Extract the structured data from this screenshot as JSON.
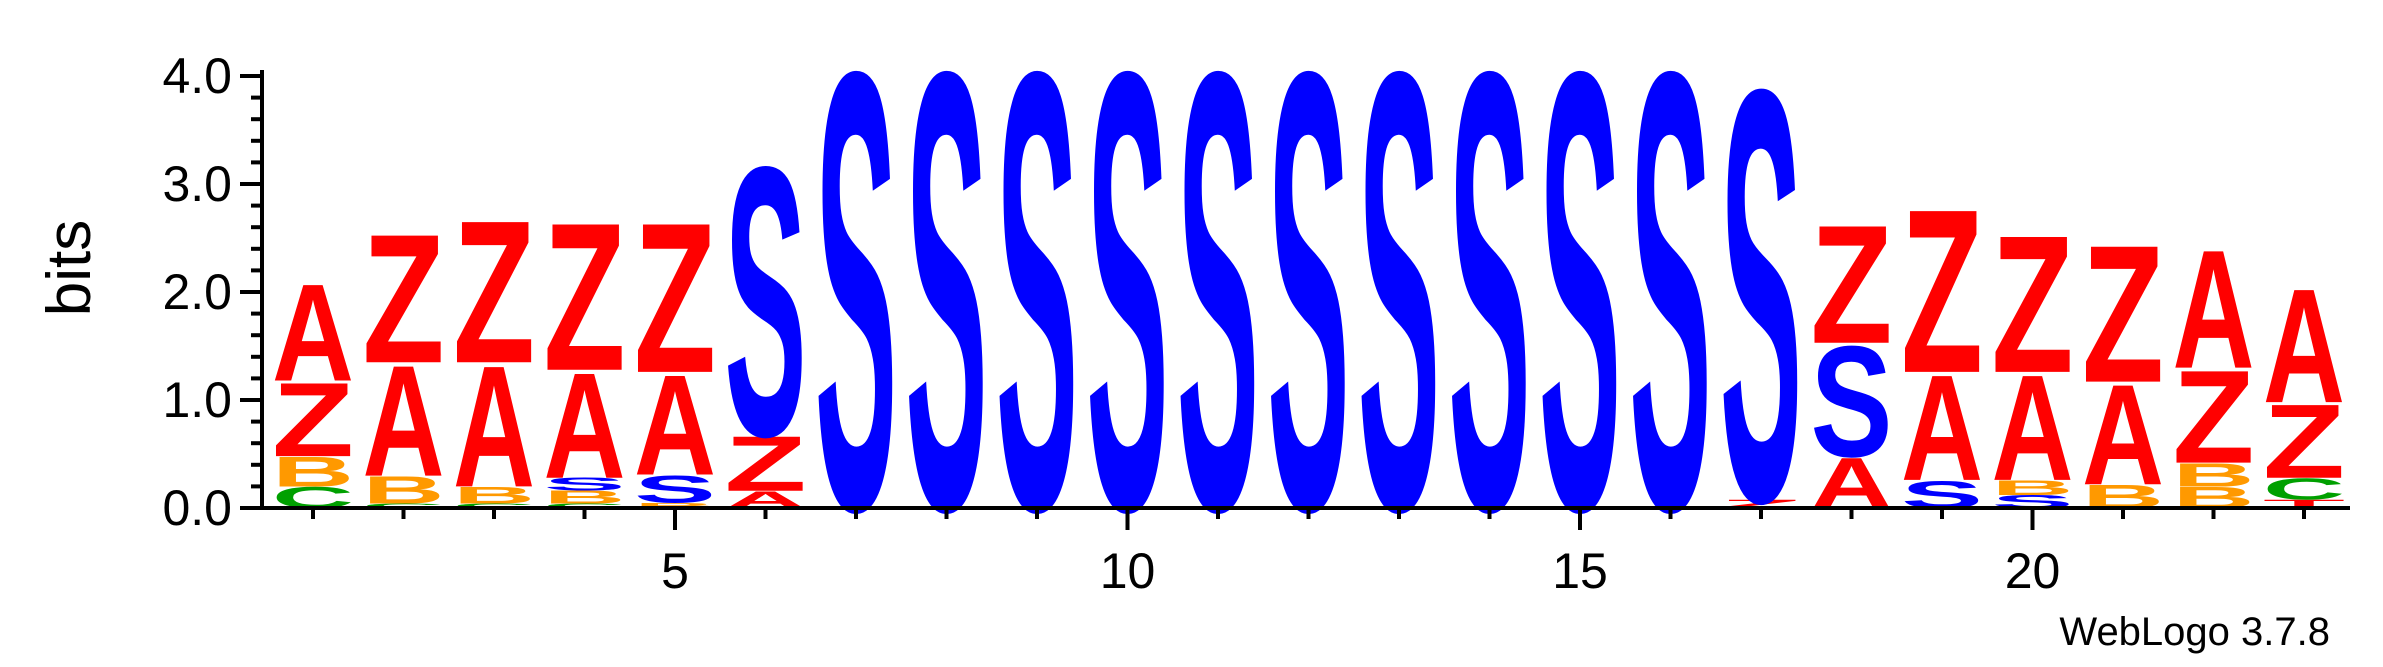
{
  "footer": "WebLogo 3.7.8",
  "chart_data": {
    "type": "sequence-logo",
    "title": "",
    "xlabel": "",
    "ylabel": "bits",
    "ylim": [
      0,
      4.0
    ],
    "y_ticks": [
      "0.0",
      "1.0",
      "2.0",
      "3.0",
      "4.0"
    ],
    "y_tick_values": [
      0,
      1,
      2,
      3,
      4
    ],
    "x_tick_labels": [
      "5",
      "10",
      "15",
      "20"
    ],
    "x_tick_values": [
      5,
      10,
      15,
      20
    ],
    "num_positions": 23,
    "colors": {
      "A": "#ff0000",
      "Z": "#ff0000",
      "S": "#0000ff",
      "B": "#ff9900",
      "C": "#00a000",
      "T": "#ff0000"
    },
    "positions": [
      {
        "pos": 1,
        "stack": [
          {
            "l": "C",
            "h": 0.2
          },
          {
            "l": "B",
            "h": 0.28
          },
          {
            "l": "Z",
            "h": 0.7
          },
          {
            "l": "A",
            "h": 0.92
          }
        ]
      },
      {
        "pos": 2,
        "stack": [
          {
            "l": "C",
            "h": 0.04
          },
          {
            "l": "B",
            "h": 0.26
          },
          {
            "l": "A",
            "h": 1.05
          },
          {
            "l": "Z",
            "h": 1.22
          }
        ]
      },
      {
        "pos": 3,
        "stack": [
          {
            "l": "C",
            "h": 0.04
          },
          {
            "l": "B",
            "h": 0.16
          },
          {
            "l": "A",
            "h": 1.15
          },
          {
            "l": "Z",
            "h": 1.35
          }
        ]
      },
      {
        "pos": 4,
        "stack": [
          {
            "l": "C",
            "h": 0.04
          },
          {
            "l": "B",
            "h": 0.12
          },
          {
            "l": "S",
            "h": 0.12
          },
          {
            "l": "A",
            "h": 1.0
          },
          {
            "l": "Z",
            "h": 1.4
          }
        ]
      },
      {
        "pos": 5,
        "stack": [
          {
            "l": "B",
            "h": 0.05
          },
          {
            "l": "S",
            "h": 0.26
          },
          {
            "l": "A",
            "h": 0.95
          },
          {
            "l": "Z",
            "h": 1.42
          }
        ]
      },
      {
        "pos": 6,
        "stack": [
          {
            "l": "A",
            "h": 0.16
          },
          {
            "l": "Z",
            "h": 0.52
          },
          {
            "l": "S",
            "h": 2.55
          }
        ]
      },
      {
        "pos": 7,
        "stack": [
          {
            "l": "S",
            "h": 4.15
          }
        ]
      },
      {
        "pos": 8,
        "stack": [
          {
            "l": "S",
            "h": 4.15
          }
        ]
      },
      {
        "pos": 9,
        "stack": [
          {
            "l": "S",
            "h": 4.15
          }
        ]
      },
      {
        "pos": 10,
        "stack": [
          {
            "l": "S",
            "h": 4.15
          }
        ]
      },
      {
        "pos": 11,
        "stack": [
          {
            "l": "S",
            "h": 4.15
          }
        ]
      },
      {
        "pos": 12,
        "stack": [
          {
            "l": "S",
            "h": 4.15
          }
        ]
      },
      {
        "pos": 13,
        "stack": [
          {
            "l": "S",
            "h": 4.15
          }
        ]
      },
      {
        "pos": 14,
        "stack": [
          {
            "l": "S",
            "h": 4.15
          }
        ]
      },
      {
        "pos": 15,
        "stack": [
          {
            "l": "S",
            "h": 4.15
          }
        ]
      },
      {
        "pos": 16,
        "stack": [
          {
            "l": "S",
            "h": 4.15
          }
        ]
      },
      {
        "pos": 17,
        "stack": [
          {
            "l": "Z",
            "h": 0.08
          },
          {
            "l": "S",
            "h": 3.9
          }
        ]
      },
      {
        "pos": 18,
        "stack": [
          {
            "l": "A",
            "h": 0.48
          },
          {
            "l": "S",
            "h": 1.05
          },
          {
            "l": "Z",
            "h": 1.12
          }
        ]
      },
      {
        "pos": 19,
        "stack": [
          {
            "l": "S",
            "h": 0.26
          },
          {
            "l": "A",
            "h": 1.0
          },
          {
            "l": "Z",
            "h": 1.55
          }
        ]
      },
      {
        "pos": 20,
        "stack": [
          {
            "l": "S",
            "h": 0.12
          },
          {
            "l": "B",
            "h": 0.14
          },
          {
            "l": "A",
            "h": 1.0
          },
          {
            "l": "Z",
            "h": 1.3
          }
        ]
      },
      {
        "pos": 21,
        "stack": [
          {
            "l": "B",
            "h": 0.22
          },
          {
            "l": "A",
            "h": 0.95
          },
          {
            "l": "Z",
            "h": 1.3
          }
        ]
      },
      {
        "pos": 22,
        "stack": [
          {
            "l": "B",
            "h": 0.2
          },
          {
            "l": "B",
            "h": 0.22
          },
          {
            "l": "Z",
            "h": 0.88
          },
          {
            "l": "A",
            "h": 1.12
          }
        ]
      },
      {
        "pos": 23,
        "stack": [
          {
            "l": "T",
            "h": 0.08
          },
          {
            "l": "C",
            "h": 0.2
          },
          {
            "l": "Z",
            "h": 0.7
          },
          {
            "l": "A",
            "h": 1.08
          }
        ]
      }
    ]
  }
}
